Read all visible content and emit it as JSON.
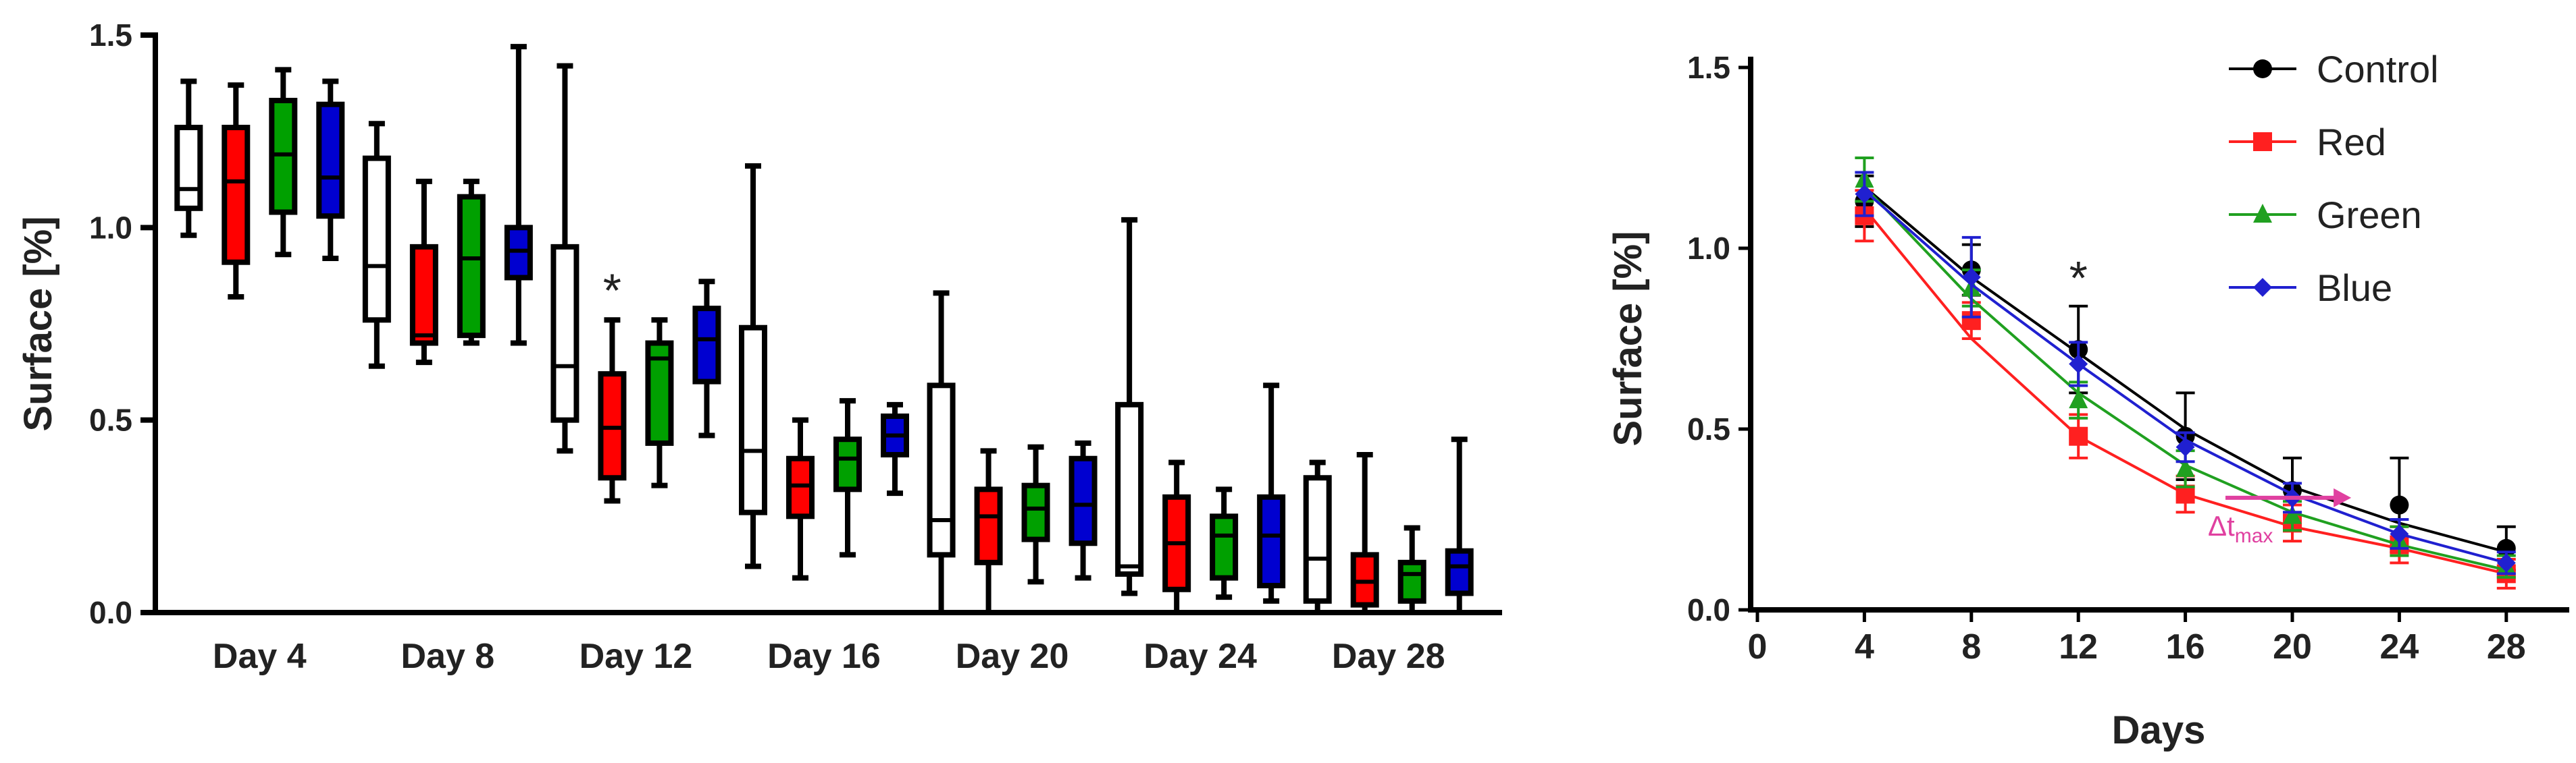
{
  "chart_data": [
    {
      "type": "boxplot",
      "ylabel": "Surface [%]",
      "ylim": [
        0,
        1.5
      ],
      "yticks": [
        "0.0",
        "0.5",
        "1.0",
        "1.5"
      ],
      "categories": [
        "Day 4",
        "Day 8",
        "Day 12",
        "Day 16",
        "Day 20",
        "Day 24",
        "Day 28"
      ],
      "significance_marker": "*",
      "significance_category": "Day 12",
      "series": [
        {
          "name": "Control",
          "color": "#ffffff",
          "boxes": [
            {
              "min": 0.98,
              "q1": 1.05,
              "median": 1.1,
              "q3": 1.26,
              "max": 1.38
            },
            {
              "min": 0.64,
              "q1": 0.76,
              "median": 0.9,
              "q3": 1.18,
              "max": 1.27
            },
            {
              "min": 0.42,
              "q1": 0.5,
              "median": 0.64,
              "q3": 0.95,
              "max": 1.42
            },
            {
              "min": 0.12,
              "q1": 0.26,
              "median": 0.42,
              "q3": 0.74,
              "max": 1.16
            },
            {
              "min": 0.0,
              "q1": 0.15,
              "median": 0.24,
              "q3": 0.59,
              "max": 0.83
            },
            {
              "min": 0.05,
              "q1": 0.1,
              "median": 0.12,
              "q3": 0.54,
              "max": 1.02
            },
            {
              "min": 0.0,
              "q1": 0.03,
              "median": 0.14,
              "q3": 0.35,
              "max": 0.39
            }
          ]
        },
        {
          "name": "Red",
          "color": "#ff0000",
          "boxes": [
            {
              "min": 0.82,
              "q1": 0.91,
              "median": 1.12,
              "q3": 1.26,
              "max": 1.37
            },
            {
              "min": 0.65,
              "q1": 0.7,
              "median": 0.72,
              "q3": 0.95,
              "max": 1.12
            },
            {
              "min": 0.29,
              "q1": 0.35,
              "median": 0.48,
              "q3": 0.62,
              "max": 0.76
            },
            {
              "min": 0.09,
              "q1": 0.25,
              "median": 0.33,
              "q3": 0.4,
              "max": 0.5
            },
            {
              "min": 0.0,
              "q1": 0.13,
              "median": 0.25,
              "q3": 0.32,
              "max": 0.42
            },
            {
              "min": 0.0,
              "q1": 0.06,
              "median": 0.18,
              "q3": 0.3,
              "max": 0.39
            },
            {
              "min": 0.0,
              "q1": 0.02,
              "median": 0.08,
              "q3": 0.15,
              "max": 0.41
            }
          ]
        },
        {
          "name": "Green",
          "color": "#00a000",
          "boxes": [
            {
              "min": 0.93,
              "q1": 1.04,
              "median": 1.19,
              "q3": 1.33,
              "max": 1.41
            },
            {
              "min": 0.7,
              "q1": 0.72,
              "median": 0.92,
              "q3": 1.08,
              "max": 1.12
            },
            {
              "min": 0.33,
              "q1": 0.44,
              "median": 0.66,
              "q3": 0.7,
              "max": 0.76
            },
            {
              "min": 0.15,
              "q1": 0.32,
              "median": 0.4,
              "q3": 0.45,
              "max": 0.55
            },
            {
              "min": 0.08,
              "q1": 0.19,
              "median": 0.27,
              "q3": 0.33,
              "max": 0.43
            },
            {
              "min": 0.04,
              "q1": 0.09,
              "median": 0.2,
              "q3": 0.25,
              "max": 0.32
            },
            {
              "min": 0.0,
              "q1": 0.03,
              "median": 0.1,
              "q3": 0.13,
              "max": 0.22
            }
          ]
        },
        {
          "name": "Blue",
          "color": "#0000d0",
          "boxes": [
            {
              "min": 0.92,
              "q1": 1.03,
              "median": 1.13,
              "q3": 1.32,
              "max": 1.38
            },
            {
              "min": 0.7,
              "q1": 0.87,
              "median": 0.94,
              "q3": 1.0,
              "max": 1.47
            },
            {
              "min": 0.46,
              "q1": 0.6,
              "median": 0.71,
              "q3": 0.79,
              "max": 0.86
            },
            {
              "min": 0.31,
              "q1": 0.41,
              "median": 0.46,
              "q3": 0.51,
              "max": 0.54
            },
            {
              "min": 0.09,
              "q1": 0.18,
              "median": 0.28,
              "q3": 0.4,
              "max": 0.44
            },
            {
              "min": 0.03,
              "q1": 0.07,
              "median": 0.2,
              "q3": 0.3,
              "max": 0.59
            },
            {
              "min": 0.0,
              "q1": 0.05,
              "median": 0.12,
              "q3": 0.16,
              "max": 0.45
            }
          ]
        }
      ]
    },
    {
      "type": "line",
      "xlabel": "Days",
      "ylabel": "Surface [%]",
      "xlim": [
        0,
        30
      ],
      "ylim": [
        0,
        1.5
      ],
      "xticks": [
        "0",
        "4",
        "8",
        "12",
        "16",
        "20",
        "24",
        "28"
      ],
      "yticks": [
        "0.0",
        "0.5",
        "1.0",
        "1.5"
      ],
      "x": [
        4,
        8,
        12,
        16,
        20,
        24,
        28
      ],
      "significance_marker": "*",
      "significance_x": 12,
      "annotation": {
        "text": "Δt",
        "subscript": "max",
        "x_from": 17.5,
        "x_to": 22.2,
        "y": 0.31,
        "color": "#e040a0"
      },
      "series": [
        {
          "name": "Control",
          "color": "#000000",
          "marker": "circle",
          "values": [
            1.13,
            0.94,
            0.72,
            0.48,
            0.33,
            0.29,
            0.17
          ],
          "err": [
            0.07,
            0.07,
            0.12,
            0.12,
            0.09,
            0.13,
            0.06
          ],
          "fit": [
            1.17,
            0.92,
            0.71,
            0.5,
            0.34,
            0.24,
            0.16
          ]
        },
        {
          "name": "Red",
          "color": "#ff2020",
          "marker": "square",
          "values": [
            1.09,
            0.8,
            0.48,
            0.32,
            0.24,
            0.18,
            0.1
          ],
          "err": [
            0.07,
            0.05,
            0.06,
            0.05,
            0.05,
            0.05,
            0.04
          ],
          "fit": [
            1.11,
            0.75,
            0.48,
            0.32,
            0.23,
            0.17,
            0.1
          ]
        },
        {
          "name": "Green",
          "color": "#20a020",
          "marker": "triangle",
          "values": [
            1.19,
            0.89,
            0.58,
            0.39,
            0.26,
            0.19,
            0.12
          ],
          "err": [
            0.06,
            0.05,
            0.05,
            0.05,
            0.04,
            0.04,
            0.03
          ],
          "fit": [
            1.17,
            0.86,
            0.6,
            0.4,
            0.27,
            0.18,
            0.11
          ]
        },
        {
          "name": "Blue",
          "color": "#2020d0",
          "marker": "diamond",
          "values": [
            1.15,
            0.92,
            0.68,
            0.45,
            0.31,
            0.21,
            0.13
          ],
          "err": [
            0.06,
            0.11,
            0.06,
            0.04,
            0.04,
            0.04,
            0.03
          ],
          "fit": [
            1.16,
            0.9,
            0.68,
            0.47,
            0.32,
            0.21,
            0.13
          ]
        }
      ]
    }
  ]
}
